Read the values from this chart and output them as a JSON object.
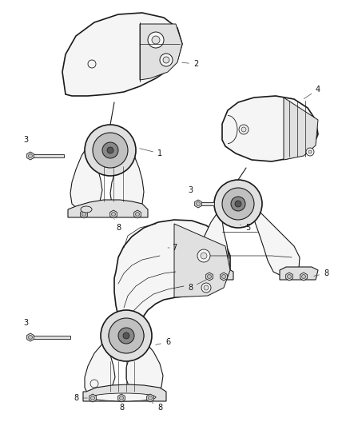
{
  "bg_color": "#ffffff",
  "line_color": "#1a1a1a",
  "fill_light": "#f5f5f5",
  "fill_mid": "#e0e0e0",
  "fill_dark": "#c0c0c0",
  "figsize": [
    4.38,
    5.33
  ],
  "dpi": 100,
  "label_fs": 7,
  "ann_lw": 0.5
}
